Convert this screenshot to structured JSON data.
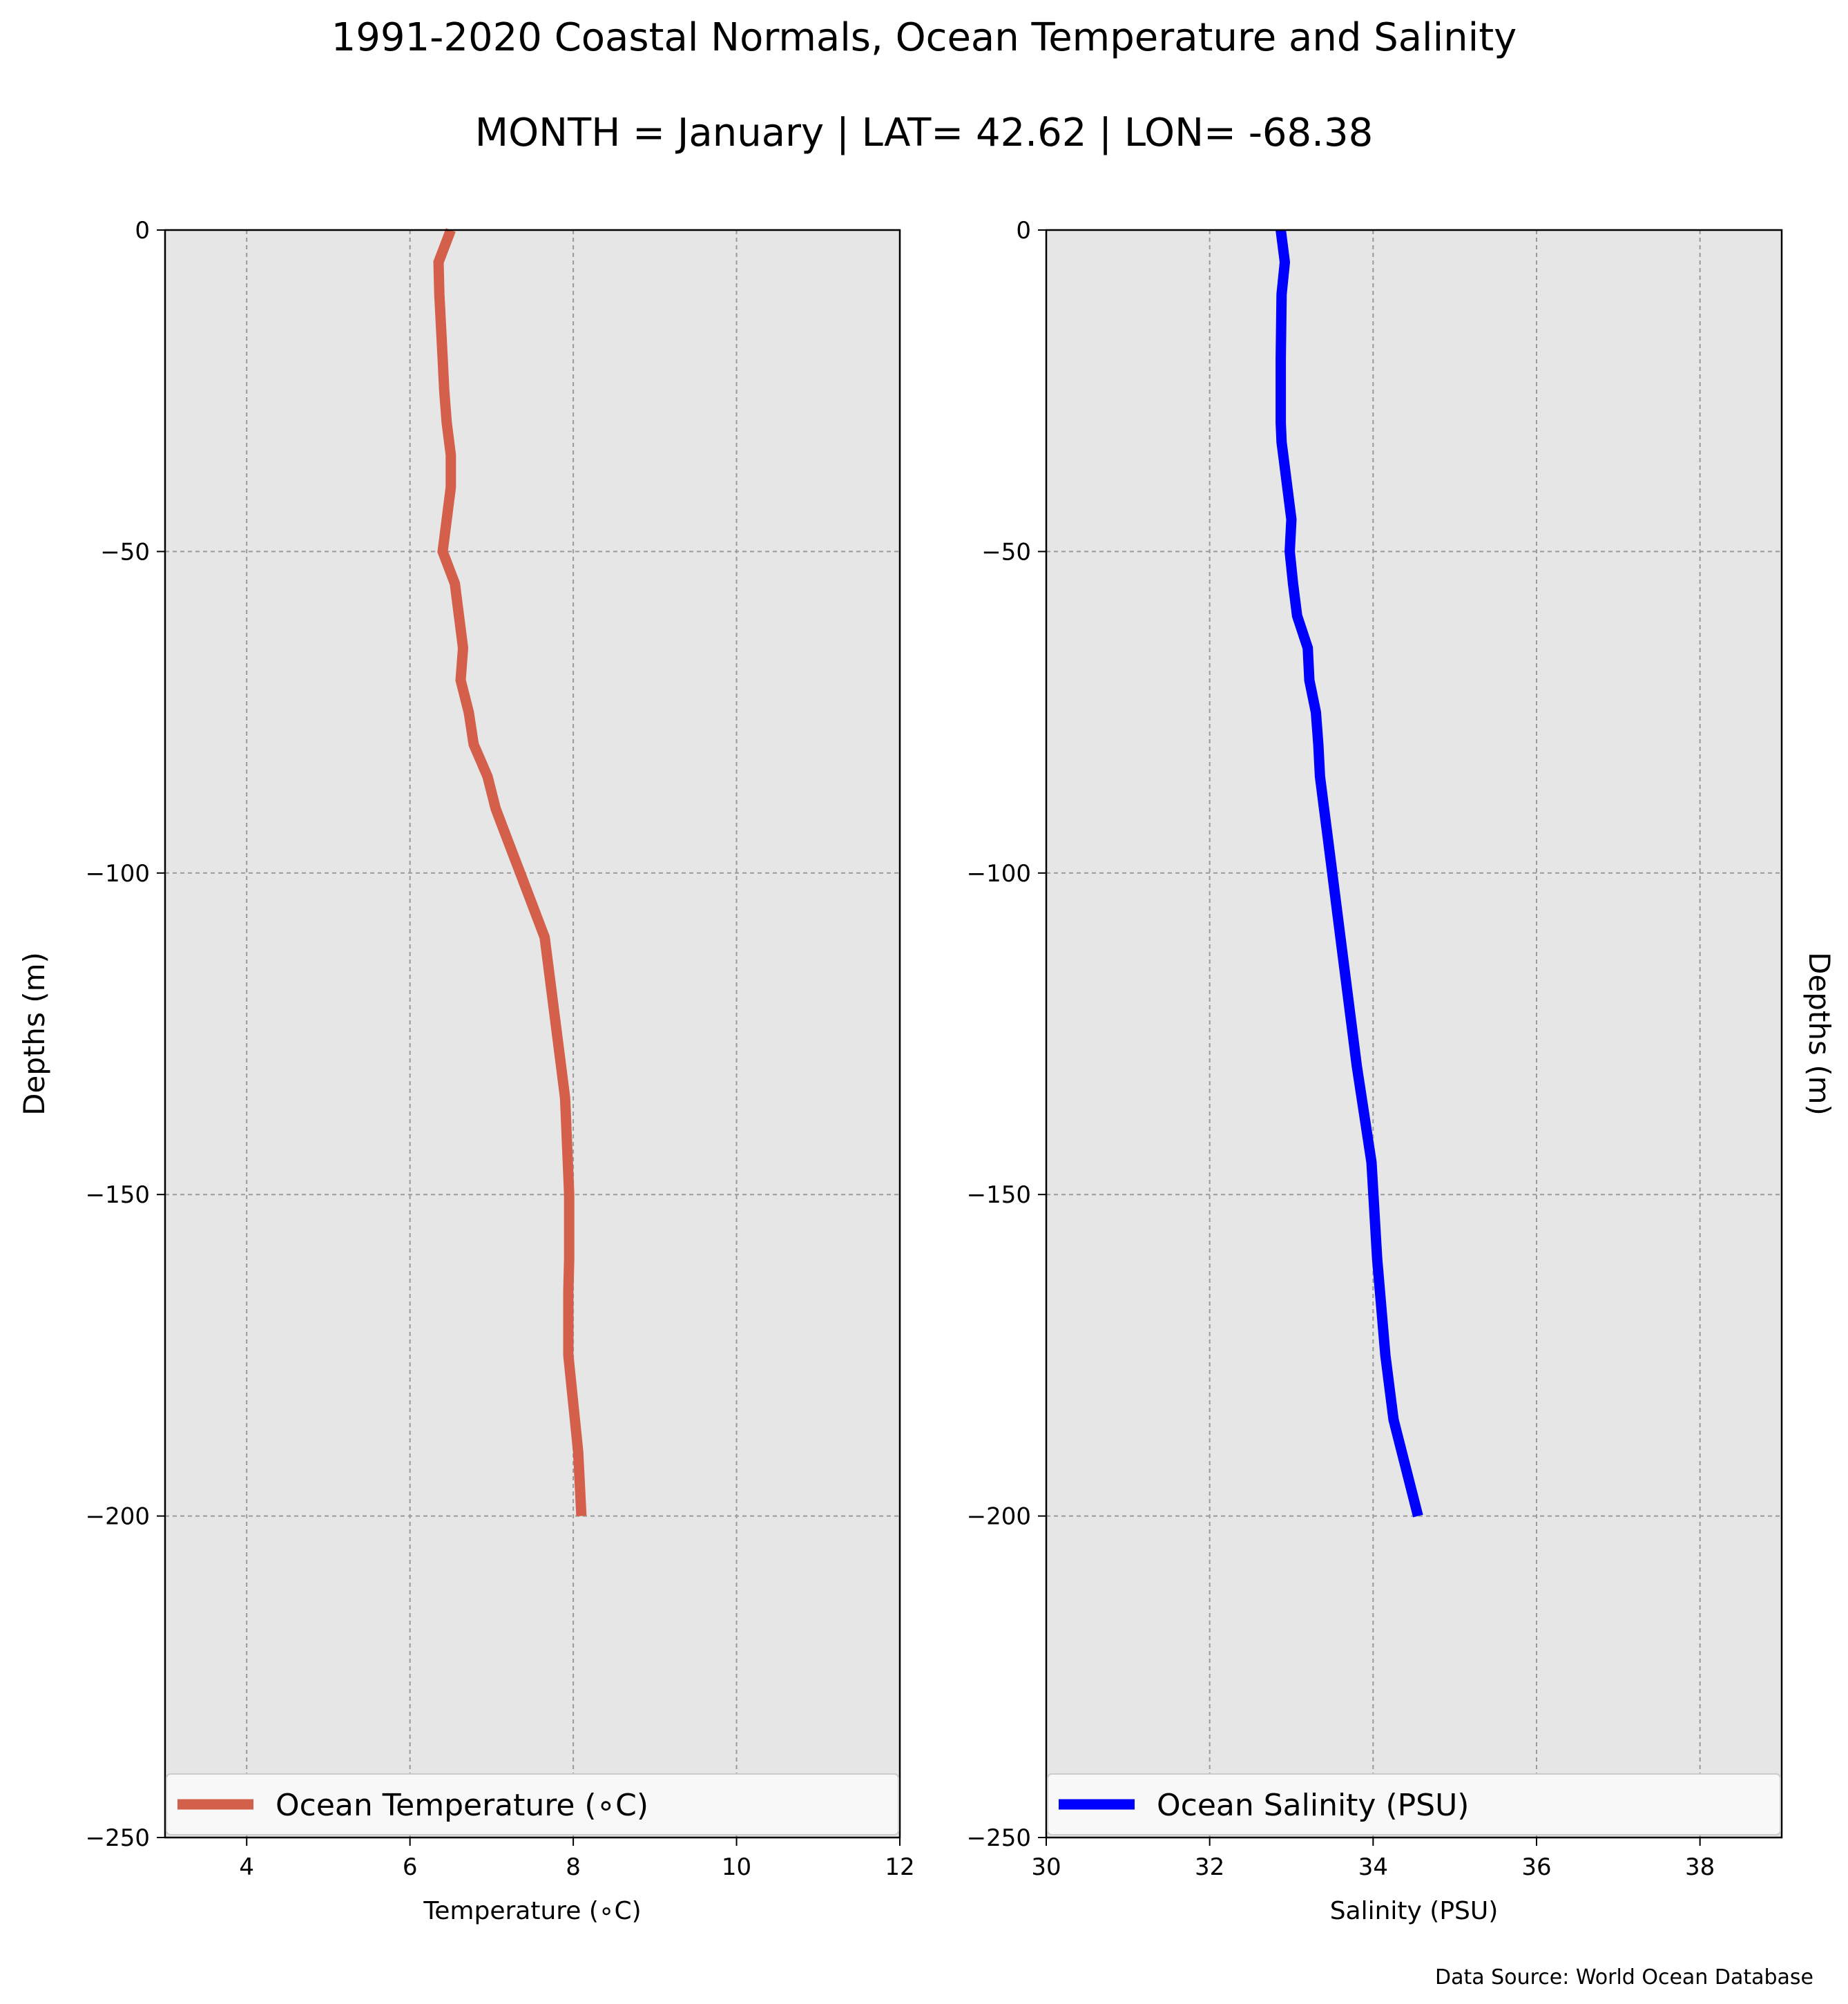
{
  "title": "1991-2020 Coastal Normals, Ocean Temperature and Salinity",
  "subtitle": "MONTH = January | LAT= 42.62 | LON= -68.38",
  "source": "Data Source: World Ocean Database",
  "colors": {
    "temperature": "#d45f4a",
    "salinity": "#0000ff",
    "plot_bg": "#e6e6e6"
  },
  "chart_data": [
    {
      "type": "line",
      "xlabel": "Temperature ($^\\circ$C)",
      "xlabel_display": "Temperature (∘C)",
      "ylabel": "Depths (m)",
      "xlim": [
        3,
        12
      ],
      "ylim": [
        -250,
        0
      ],
      "xticks": [
        4,
        6,
        8,
        10,
        12
      ],
      "yticks": [
        0,
        -50,
        -100,
        -150,
        -200,
        -250
      ],
      "grid": true,
      "legend_position": "lower center",
      "series": [
        {
          "name": "Ocean Temperature (∘C)",
          "x": [
            6.5,
            6.35,
            6.36,
            6.38,
            6.4,
            6.42,
            6.45,
            6.5,
            6.5,
            6.4,
            6.55,
            6.6,
            6.65,
            6.62,
            6.72,
            6.78,
            6.95,
            7.05,
            7.2,
            7.35,
            7.5,
            7.65,
            7.8,
            7.85,
            7.9,
            7.95,
            7.95,
            7.95,
            7.94,
            7.94,
            7.98,
            8.02,
            8.06,
            8.1
          ],
          "y": [
            0,
            -5,
            -10,
            -15,
            -20,
            -25,
            -30,
            -35,
            -40,
            -50,
            -55,
            -60,
            -65,
            -70,
            -75,
            -80,
            -85,
            -90,
            -95,
            -100,
            -105,
            -110,
            -125,
            -130,
            -135,
            -150,
            -155,
            -160,
            -165,
            -175,
            -180,
            -185,
            -190,
            -200
          ]
        }
      ]
    },
    {
      "type": "line",
      "xlabel": "Salinity (PSU)",
      "ylabel": "Depths (m)",
      "xlim": [
        30,
        39
      ],
      "ylim": [
        -250,
        0
      ],
      "xticks": [
        30,
        32,
        34,
        36,
        38
      ],
      "yticks": [
        0,
        -50,
        -100,
        -150,
        -200,
        -250
      ],
      "grid": true,
      "legend_position": "lower center",
      "series": [
        {
          "name": "Ocean Salinity (PSU)",
          "x": [
            32.87,
            32.92,
            32.88,
            32.87,
            32.87,
            32.87,
            32.88,
            32.9,
            32.95,
            33.0,
            32.98,
            33.02,
            33.07,
            33.2,
            33.22,
            33.3,
            33.33,
            33.35,
            33.4,
            33.45,
            33.6,
            33.8,
            33.98,
            34.05,
            34.15,
            34.25,
            34.55
          ],
          "y": [
            0,
            -5,
            -10,
            -20,
            -25,
            -30,
            -33,
            -35,
            -40,
            -45,
            -50,
            -55,
            -60,
            -65,
            -70,
            -75,
            -80,
            -85,
            -90,
            -95,
            -110,
            -130,
            -145,
            -160,
            -175,
            -185,
            -200
          ]
        }
      ]
    }
  ]
}
